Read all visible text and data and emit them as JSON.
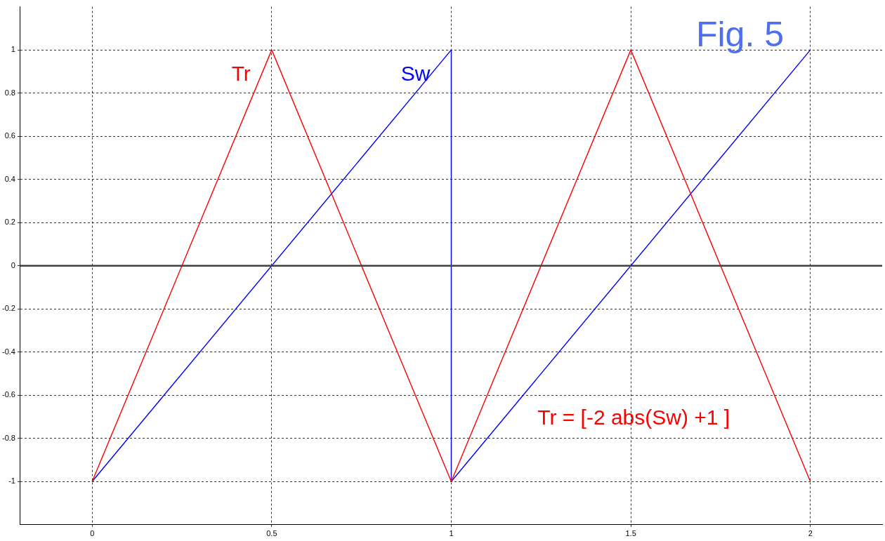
{
  "chart_data": {
    "type": "line",
    "title": "Fig. 5",
    "xlim": [
      -0.2,
      2.2
    ],
    "xticks": [
      0,
      0.5,
      1,
      1.5,
      2
    ],
    "ylim": [
      -1.2,
      1.2
    ],
    "yticks": [
      -1,
      -0.8,
      -0.6,
      -0.4,
      -0.2,
      0,
      0.2,
      0.4,
      0.6,
      0.8,
      1
    ],
    "grid": true,
    "line_style": "solid",
    "marker": "none",
    "ref_lines": [
      {
        "axis": "y",
        "value": 0,
        "color": "#404040"
      }
    ],
    "annotations": [
      "Tr = [-2 abs(Sw) +1 ]"
    ],
    "series": [
      {
        "name": "Tr",
        "color": "#ff0000",
        "x": [
          0,
          0.5,
          1,
          1.5,
          2
        ],
        "values": [
          -1,
          1,
          -1,
          1,
          -1
        ]
      },
      {
        "name": "Sw",
        "color": "#0000ff",
        "x": [
          0,
          1,
          1,
          2
        ],
        "values": [
          -1,
          1,
          -1,
          1
        ]
      }
    ]
  }
}
